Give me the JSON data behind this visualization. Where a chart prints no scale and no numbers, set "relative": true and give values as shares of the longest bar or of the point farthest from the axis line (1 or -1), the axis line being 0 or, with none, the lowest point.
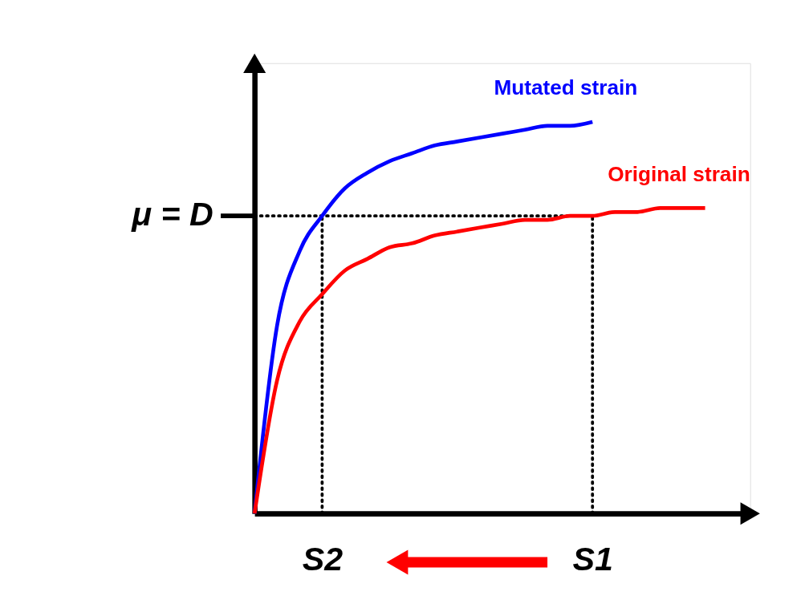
{
  "chart_data": {
    "type": "line",
    "relative": true,
    "grid": false,
    "legend": false,
    "line_style": "solid",
    "categories": [
      null,
      null,
      null,
      "S2",
      null,
      null,
      null,
      null,
      null,
      null,
      null,
      null,
      null,
      null,
      null,
      "S1",
      null,
      null,
      null,
      null,
      null
    ],
    "series": [
      {
        "name": "Mutated strain",
        "color": "#0000ff",
        "values": [
          0,
          0.48,
          0.67,
          0.76,
          0.83,
          0.87,
          0.9,
          0.92,
          0.94,
          0.95,
          0.96,
          0.97,
          0.98,
          0.99,
          0.99,
          1.0,
          null,
          null,
          null,
          null,
          null
        ]
      },
      {
        "name": "Original strain",
        "color": "#ff0000",
        "values": [
          0,
          0.34,
          0.49,
          0.56,
          0.62,
          0.65,
          0.68,
          0.69,
          0.71,
          0.72,
          0.73,
          0.74,
          0.75,
          0.75,
          0.76,
          0.76,
          0.77,
          0.77,
          0.78,
          0.78,
          0.78
        ]
      }
    ],
    "ref_lines": [
      {
        "axis": "y",
        "value": 0.76,
        "label": "μ = D",
        "line_style": "dotted",
        "color": "#000000"
      },
      {
        "axis": "x",
        "value": "S2",
        "line_style": "dotted",
        "color": "#000000"
      },
      {
        "axis": "x",
        "value": "S1",
        "line_style": "dotted",
        "color": "#000000"
      }
    ]
  }
}
